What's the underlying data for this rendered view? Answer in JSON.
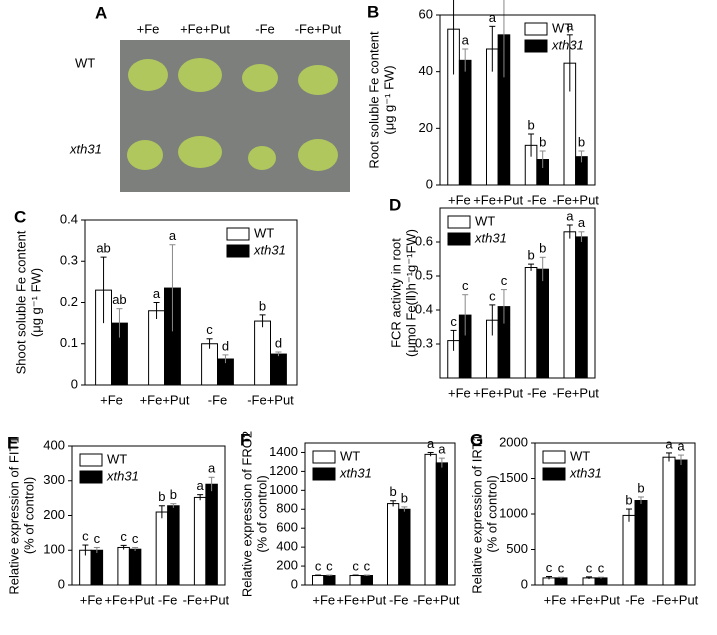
{
  "photo_panel": {
    "panel": "A",
    "columns": [
      "+Fe",
      "+Fe+Put",
      "-Fe",
      "-Fe+Put"
    ],
    "rows": [
      "WT",
      "xth31"
    ]
  },
  "chart_data": [
    {
      "type": "bar",
      "panel": "B",
      "ylabel": [
        "Root soluble Fe content",
        "(μg g⁻¹ FW)"
      ],
      "categories": [
        "+Fe",
        "+Fe+Put",
        "-Fe",
        "-Fe+Put"
      ],
      "ylim": [
        0,
        60
      ],
      "yticks": [
        0,
        20,
        40,
        60
      ],
      "legend": "upper right",
      "series": [
        {
          "name": "WT",
          "color": "#ffffff",
          "values": [
            55,
            48,
            14,
            43
          ],
          "errors": [
            16,
            8,
            4,
            10
          ],
          "letters": [
            "a",
            "a",
            "b",
            "a"
          ]
        },
        {
          "name": "xth31",
          "color": "#000000",
          "font_style": "italic",
          "values": [
            44,
            53,
            9,
            10
          ],
          "errors": [
            4,
            15,
            3,
            2
          ],
          "letters": [
            "a",
            "a",
            "b",
            "b"
          ]
        }
      ]
    },
    {
      "type": "bar",
      "panel": "C",
      "ylabel": [
        "Shoot soluble Fe content",
        "(μg g⁻¹ FW)"
      ],
      "categories": [
        "+Fe",
        "+Fe+Put",
        "-Fe",
        "-Fe+Put"
      ],
      "ylim": [
        0,
        0.4
      ],
      "yticks": [
        0,
        0.1,
        0.2,
        0.3,
        0.4
      ],
      "legend": "upper right",
      "series": [
        {
          "name": "WT",
          "color": "#ffffff",
          "values": [
            0.23,
            0.18,
            0.1,
            0.155
          ],
          "errors": [
            0.08,
            0.02,
            0.012,
            0.015
          ],
          "letters": [
            "ab",
            "a",
            "c",
            "b"
          ]
        },
        {
          "name": "xth31",
          "color": "#000000",
          "font_style": "italic",
          "values": [
            0.15,
            0.235,
            0.063,
            0.075
          ],
          "errors": [
            0.035,
            0.105,
            0.01,
            0.005
          ],
          "letters": [
            "ab",
            "a",
            "d",
            "d"
          ]
        }
      ]
    },
    {
      "type": "bar",
      "panel": "D",
      "ylabel": [
        "FCR activity in root",
        "(μmol Fe(Ⅱ)h⁻¹g⁻¹FW)"
      ],
      "categories": [
        "+Fe",
        "+Fe+Put",
        "-Fe",
        "-Fe+Put"
      ],
      "ylim": [
        0.2,
        0.7
      ],
      "yticks": [
        0.3,
        0.4,
        0.5,
        0.6
      ],
      "legend": "upper left",
      "series": [
        {
          "name": "WT",
          "color": "#ffffff",
          "values": [
            0.31,
            0.37,
            0.525,
            0.63
          ],
          "errors": [
            0.03,
            0.045,
            0.01,
            0.02
          ],
          "letters": [
            "c",
            "c",
            "b",
            "a"
          ]
        },
        {
          "name": "xth31",
          "color": "#000000",
          "font_style": "italic",
          "values": [
            0.385,
            0.41,
            0.52,
            0.615
          ],
          "errors": [
            0.06,
            0.05,
            0.035,
            0.015
          ],
          "letters": [
            "c",
            "c",
            "b",
            "a"
          ]
        }
      ]
    },
    {
      "type": "bar",
      "panel": "E",
      "ylabel": [
        "Relative expression of FIT1",
        "(% of control)"
      ],
      "categories": [
        "+Fe",
        "+Fe+Put",
        "-Fe",
        "-Fe+Put"
      ],
      "ylim": [
        0,
        400
      ],
      "yticks": [
        0,
        100,
        200,
        300,
        400
      ],
      "legend": "upper left",
      "series": [
        {
          "name": "WT",
          "color": "#ffffff",
          "values": [
            100,
            108,
            210,
            252
          ],
          "errors": [
            15,
            6,
            18,
            8
          ],
          "letters": [
            "c",
            "c",
            "b",
            "a"
          ]
        },
        {
          "name": "xth31",
          "color": "#000000",
          "font_style": "italic",
          "values": [
            100,
            103,
            228,
            290
          ],
          "errors": [
            8,
            5,
            6,
            20
          ],
          "letters": [
            "c",
            "c",
            "b",
            "a"
          ]
        }
      ]
    },
    {
      "type": "bar",
      "panel": "F",
      "ylabel": [
        "Relative expression of FRO2",
        "(% of control)"
      ],
      "categories": [
        "+Fe",
        "+Fe+Put",
        "-Fe",
        "-Fe+Put"
      ],
      "ylim": [
        0,
        1500
      ],
      "yticks": [
        0,
        200,
        400,
        600,
        800,
        1000,
        1200,
        1400
      ],
      "legend": "upper left",
      "series": [
        {
          "name": "WT",
          "color": "#ffffff",
          "values": [
            100,
            100,
            860,
            1380
          ],
          "errors": [
            5,
            5,
            30,
            20
          ],
          "letters": [
            "c",
            "c",
            "b",
            "a"
          ]
        },
        {
          "name": "xth31",
          "color": "#000000",
          "font_style": "italic",
          "values": [
            100,
            100,
            800,
            1290
          ],
          "errors": [
            5,
            5,
            25,
            50
          ],
          "letters": [
            "c",
            "c",
            "b",
            "a"
          ]
        }
      ]
    },
    {
      "type": "bar",
      "panel": "G",
      "ylabel": [
        "Relative expression of IRT1",
        "(% of control)"
      ],
      "categories": [
        "+Fe",
        "+Fe+Put",
        "-Fe",
        "-Fe+Put"
      ],
      "ylim": [
        0,
        2000
      ],
      "yticks": [
        0,
        500,
        1000,
        1500,
        2000
      ],
      "legend": "upper left",
      "series": [
        {
          "name": "WT",
          "color": "#ffffff",
          "values": [
            100,
            100,
            980,
            1800
          ],
          "errors": [
            20,
            15,
            90,
            60
          ],
          "letters": [
            "c",
            "c",
            "b",
            "a"
          ]
        },
        {
          "name": "xth31",
          "color": "#000000",
          "font_style": "italic",
          "values": [
            100,
            100,
            1190,
            1760
          ],
          "errors": [
            10,
            10,
            50,
            70
          ],
          "letters": [
            "c",
            "c",
            "b",
            "a"
          ]
        }
      ]
    }
  ]
}
